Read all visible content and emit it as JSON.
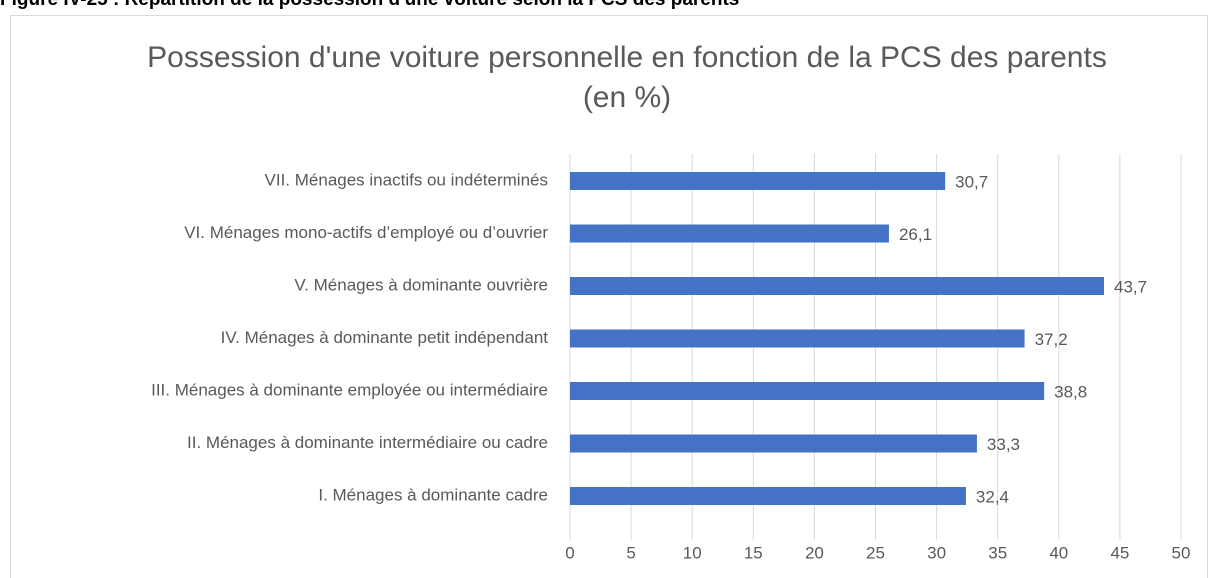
{
  "caption": "Figure IV-25 : Répartition de la possession d'une voiture selon la PCS des parents",
  "chart_data": {
    "type": "barh",
    "title": "Possession d'une voiture personnelle en fonction de la PCS des parents (en %)",
    "categories": [
      "I. Ménages à dominante cadre",
      "II. Ménages à dominante intermédiaire ou cadre",
      "III. Ménages à dominante employée ou intermédiaire",
      "IV. Ménages à dominante petit indépendant",
      "V. Ménages à dominante ouvrière",
      "VI. Ménages mono-actifs d’employé ou d’ouvrier",
      "VII. Ménages inactifs ou indéterminés"
    ],
    "values": [
      32.4,
      33.3,
      38.8,
      37.2,
      43.7,
      26.1,
      30.7
    ],
    "value_labels": [
      "32,4",
      "33,3",
      "38,8",
      "37,2",
      "43,7",
      "26,1",
      "30,7"
    ],
    "color": "#4472c4",
    "xlim": [
      0,
      50
    ],
    "xticks": [
      0,
      5,
      10,
      15,
      20,
      25,
      30,
      35,
      40,
      45,
      50
    ],
    "grid": true
  }
}
